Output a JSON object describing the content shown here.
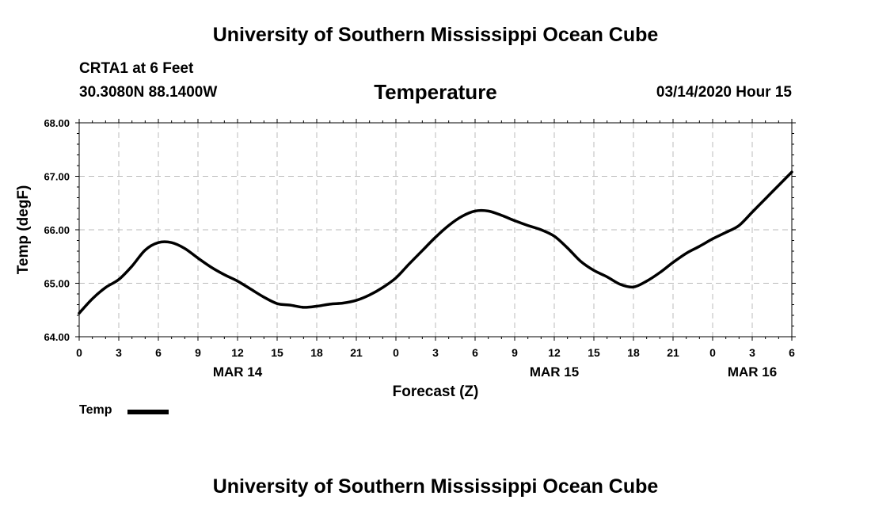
{
  "header": {
    "title": "University of Southern Mississippi Ocean Cube"
  },
  "footer": {
    "title": "University of Southern Mississippi Ocean Cube"
  },
  "station": {
    "name": "CRTA1 at 6 Feet",
    "coords": "30.3080N 88.1400W"
  },
  "plot_title": "Temperature",
  "valid_time": "03/14/2020 Hour 15",
  "legend": {
    "label": "Temp",
    "placement": "bottom-left"
  },
  "colors": {
    "line": "#000000",
    "grid": "#bbbbbb",
    "axis": "#000000",
    "background": "#ffffff"
  },
  "chart_data": {
    "type": "line",
    "title": "Temperature",
    "xlabel": "Forecast (Z)",
    "ylabel": "Temp (degF)",
    "ylim": [
      64.0,
      68.0
    ],
    "xlim": [
      0,
      54
    ],
    "grid": true,
    "y_ticks": [
      "64.00",
      "65.00",
      "66.00",
      "67.00",
      "68.00"
    ],
    "x_ticks": [
      {
        "hour": 0,
        "label": "0"
      },
      {
        "hour": 3,
        "label": "3"
      },
      {
        "hour": 6,
        "label": "6"
      },
      {
        "hour": 9,
        "label": "9"
      },
      {
        "hour": 12,
        "label": "12"
      },
      {
        "hour": 15,
        "label": "15"
      },
      {
        "hour": 18,
        "label": "18"
      },
      {
        "hour": 21,
        "label": "21"
      },
      {
        "hour": 24,
        "label": "0"
      },
      {
        "hour": 27,
        "label": "3"
      },
      {
        "hour": 30,
        "label": "6"
      },
      {
        "hour": 33,
        "label": "9"
      },
      {
        "hour": 36,
        "label": "12"
      },
      {
        "hour": 39,
        "label": "15"
      },
      {
        "hour": 42,
        "label": "18"
      },
      {
        "hour": 45,
        "label": "21"
      },
      {
        "hour": 48,
        "label": "0"
      },
      {
        "hour": 51,
        "label": "3"
      },
      {
        "hour": 54,
        "label": "6"
      }
    ],
    "date_labels": [
      {
        "hour": 12,
        "label": "MAR 14"
      },
      {
        "hour": 36,
        "label": "MAR 15"
      },
      {
        "hour": 51,
        "label": "MAR 16"
      }
    ],
    "series": [
      {
        "name": "Temp",
        "x": [
          0,
          1,
          2,
          3,
          4,
          5,
          6,
          7,
          8,
          9,
          10,
          11,
          12,
          13,
          14,
          15,
          16,
          17,
          18,
          19,
          20,
          21,
          22,
          23,
          24,
          25,
          26,
          27,
          28,
          29,
          30,
          31,
          32,
          33,
          34,
          35,
          36,
          37,
          38,
          39,
          40,
          41,
          42,
          43,
          44,
          45,
          46,
          47,
          48,
          49,
          50,
          51,
          52,
          53,
          54
        ],
        "values": [
          64.44,
          64.71,
          64.92,
          65.07,
          65.32,
          65.62,
          65.76,
          65.76,
          65.65,
          65.47,
          65.3,
          65.16,
          65.04,
          64.89,
          64.74,
          64.62,
          64.59,
          64.55,
          64.57,
          64.61,
          64.63,
          64.68,
          64.78,
          64.92,
          65.1,
          65.36,
          65.61,
          65.86,
          66.08,
          66.25,
          66.35,
          66.35,
          66.27,
          66.17,
          66.08,
          66.0,
          65.88,
          65.66,
          65.41,
          65.24,
          65.12,
          64.98,
          64.93,
          65.04,
          65.2,
          65.39,
          65.56,
          65.69,
          65.83,
          65.95,
          66.08,
          66.33,
          66.58,
          66.83,
          67.08
        ]
      }
    ]
  }
}
